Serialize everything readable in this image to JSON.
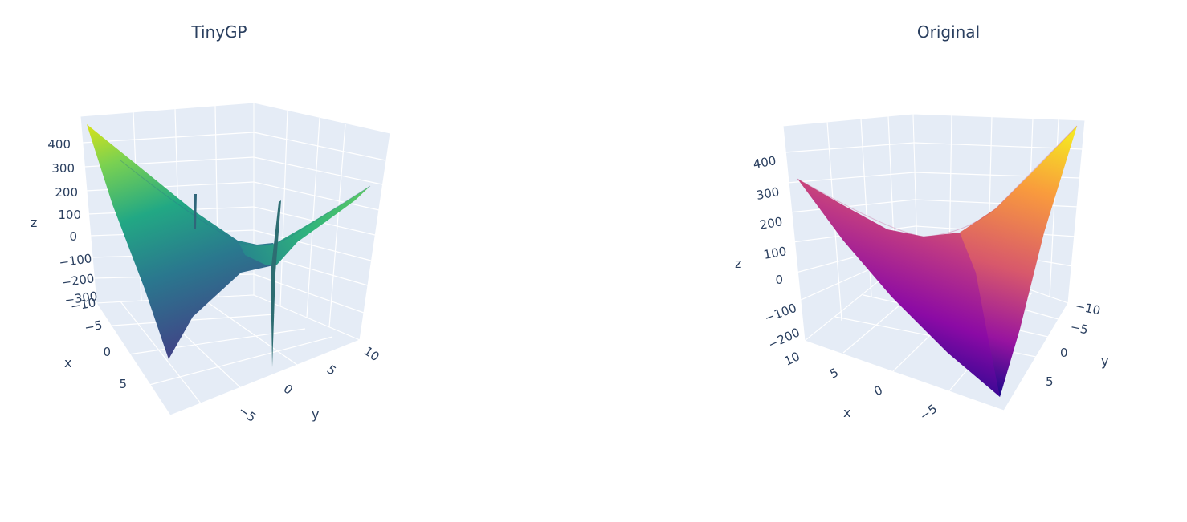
{
  "chart_data": [
    {
      "type": "surface",
      "title": "TinyGP",
      "colorscale": "viridis",
      "colors": {
        "low": "#3b518b",
        "mid": "#21918c",
        "high": "#d0e11c",
        "spike": "#2b6f6c"
      },
      "axes": {
        "x": {
          "label": "x",
          "ticks": [
            "−10",
            "−5",
            "0",
            "5"
          ]
        },
        "y": {
          "label": "y",
          "ticks": [
            "−5",
            "0",
            "5",
            "10"
          ]
        },
        "z": {
          "label": "z",
          "ticks": [
            "−300",
            "−200",
            "−100",
            "0",
            "100",
            "200",
            "300",
            "400"
          ]
        }
      },
      "zlim": [
        -300,
        450
      ],
      "surface_corners": [
        {
          "x": -10,
          "y": -10,
          "z": 460
        },
        {
          "x": 10,
          "y": 10,
          "z": 420
        },
        {
          "x": 10,
          "y": -10,
          "z": -300
        },
        {
          "x": -10,
          "y": 10,
          "z": -300
        }
      ],
      "spikes": [
        {
          "x": 0,
          "y": 0,
          "zmin": -300,
          "zmax": 200
        }
      ]
    },
    {
      "type": "surface",
      "title": "Original",
      "colorscale": "plasma",
      "colors": {
        "low": "#0d0887",
        "mid": "#b12a90",
        "high": "#f0f921"
      },
      "axes": {
        "x": {
          "label": "x",
          "ticks": [
            "10",
            "5",
            "0",
            "−5"
          ]
        },
        "y": {
          "label": "y",
          "ticks": [
            "−10",
            "−5",
            "0",
            "5"
          ]
        },
        "z": {
          "label": "z",
          "ticks": [
            "−200",
            "−100",
            "0",
            "100",
            "200",
            "300",
            "400"
          ]
        }
      },
      "zlim": [
        -200,
        480
      ],
      "surface_corners": [
        {
          "x": 10,
          "y": -10,
          "z": 320
        },
        {
          "x": -10,
          "y": 10,
          "z": 480
        },
        {
          "x": -10,
          "y": -10,
          "z": -200
        },
        {
          "x": 10,
          "y": 10,
          "z": -200
        }
      ]
    }
  ]
}
